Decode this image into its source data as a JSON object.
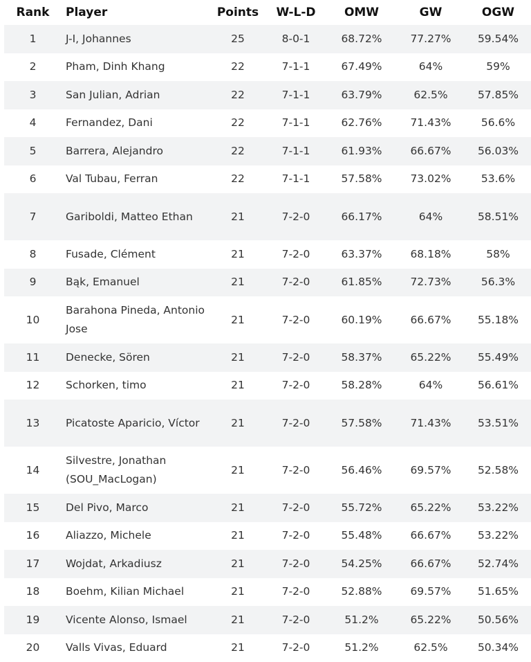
{
  "headers": {
    "rank": "Rank",
    "player": "Player",
    "points": "Points",
    "wld": "W-L-D",
    "omw": "OMW",
    "gw": "GW",
    "ogw": "OGW"
  },
  "rows": [
    {
      "rank": "1",
      "player": "J-I, Johannes",
      "points": "25",
      "wld": "8-0-1",
      "omw": "68.72%",
      "gw": "77.27%",
      "ogw": "59.54%"
    },
    {
      "rank": "2",
      "player": "Pham, Dinh Khang",
      "points": "22",
      "wld": "7-1-1",
      "omw": "67.49%",
      "gw": "64%",
      "ogw": "59%"
    },
    {
      "rank": "3",
      "player": "San Julian, Adrian",
      "points": "22",
      "wld": "7-1-1",
      "omw": "63.79%",
      "gw": "62.5%",
      "ogw": "57.85%"
    },
    {
      "rank": "4",
      "player": "Fernandez, Dani",
      "points": "22",
      "wld": "7-1-1",
      "omw": "62.76%",
      "gw": "71.43%",
      "ogw": "56.6%"
    },
    {
      "rank": "5",
      "player": "Barrera, Alejandro",
      "points": "22",
      "wld": "7-1-1",
      "omw": "61.93%",
      "gw": "66.67%",
      "ogw": "56.03%"
    },
    {
      "rank": "6",
      "player": "Val Tubau, Ferran",
      "points": "22",
      "wld": "7-1-1",
      "omw": "57.58%",
      "gw": "73.02%",
      "ogw": "53.6%"
    },
    {
      "rank": "7",
      "player": "Gariboldi, Matteo Ethan",
      "points": "21",
      "wld": "7-2-0",
      "omw": "66.17%",
      "gw": "64%",
      "ogw": "58.51%"
    },
    {
      "rank": "8",
      "player": "Fusade, Clément",
      "points": "21",
      "wld": "7-2-0",
      "omw": "63.37%",
      "gw": "68.18%",
      "ogw": "58%"
    },
    {
      "rank": "9",
      "player": "Bąk, Emanuel",
      "points": "21",
      "wld": "7-2-0",
      "omw": "61.85%",
      "gw": "72.73%",
      "ogw": "56.3%"
    },
    {
      "rank": "10",
      "player": "Barahona Pineda, Antonio Jose",
      "points": "21",
      "wld": "7-2-0",
      "omw": "60.19%",
      "gw": "66.67%",
      "ogw": "55.18%"
    },
    {
      "rank": "11",
      "player": "Denecke, Sören",
      "points": "21",
      "wld": "7-2-0",
      "omw": "58.37%",
      "gw": "65.22%",
      "ogw": "55.49%"
    },
    {
      "rank": "12",
      "player": "Schorken, timo",
      "points": "21",
      "wld": "7-2-0",
      "omw": "58.28%",
      "gw": "64%",
      "ogw": "56.61%"
    },
    {
      "rank": "13",
      "player": "Picatoste Aparicio, Víctor",
      "points": "21",
      "wld": "7-2-0",
      "omw": "57.58%",
      "gw": "71.43%",
      "ogw": "53.51%"
    },
    {
      "rank": "14",
      "player": "Silvestre, Jonathan (SOU_MacLogan)",
      "points": "21",
      "wld": "7-2-0",
      "omw": "56.46%",
      "gw": "69.57%",
      "ogw": "52.58%"
    },
    {
      "rank": "15",
      "player": "Del Pivo, Marco",
      "points": "21",
      "wld": "7-2-0",
      "omw": "55.72%",
      "gw": "65.22%",
      "ogw": "53.22%"
    },
    {
      "rank": "16",
      "player": "Aliazzo, Michele",
      "points": "21",
      "wld": "7-2-0",
      "omw": "55.48%",
      "gw": "66.67%",
      "ogw": "53.22%"
    },
    {
      "rank": "17",
      "player": "Wojdat, Arkadiusz",
      "points": "21",
      "wld": "7-2-0",
      "omw": "54.25%",
      "gw": "66.67%",
      "ogw": "52.74%"
    },
    {
      "rank": "18",
      "player": "Boehm, Kilian Michael",
      "points": "21",
      "wld": "7-2-0",
      "omw": "52.88%",
      "gw": "69.57%",
      "ogw": "51.65%"
    },
    {
      "rank": "19",
      "player": "Vicente Alonso, Ismael",
      "points": "21",
      "wld": "7-2-0",
      "omw": "51.2%",
      "gw": "65.22%",
      "ogw": "50.56%"
    },
    {
      "rank": "20",
      "player": "Valls Vivas, Eduard",
      "points": "21",
      "wld": "7-2-0",
      "omw": "51.2%",
      "gw": "62.5%",
      "ogw": "50.34%"
    }
  ]
}
